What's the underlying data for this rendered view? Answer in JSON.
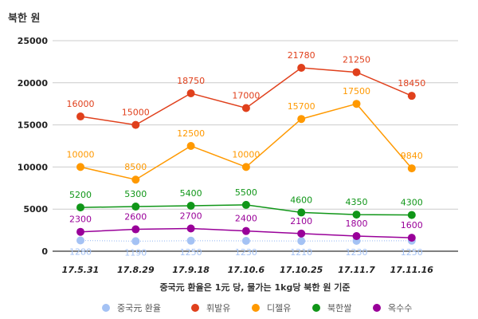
{
  "chart_data": {
    "type": "line",
    "title": "",
    "ylabel": "북한 원",
    "xlabel": "중국元 환율은 1元 당, 물가는 1kg당 북한 원 기준",
    "categories": [
      "17.5.31",
      "17.8.29",
      "17.9.18",
      "17.10.6",
      "17.10.25",
      "17.11.7",
      "17.11.16"
    ],
    "ylim": [
      0,
      25000
    ],
    "yticks": [
      0,
      5000,
      10000,
      15000,
      20000,
      25000
    ],
    "grid": true,
    "legend_position": "bottom",
    "series": [
      {
        "name": "중국元 환율",
        "color": "#a4c2f4",
        "dotted": true,
        "values": [
          1280,
          1190,
          1250,
          1230,
          1210,
          1230,
          1250
        ]
      },
      {
        "name": "휘발유",
        "color": "#e0401c",
        "values": [
          16000,
          15000,
          18750,
          17000,
          21780,
          21250,
          18450
        ]
      },
      {
        "name": "디젤유",
        "color": "#ff9900",
        "values": [
          10000,
          8500,
          12500,
          10000,
          15700,
          17500,
          9840
        ]
      },
      {
        "name": "북한쌀",
        "color": "#109618",
        "values": [
          5200,
          5300,
          5400,
          5500,
          4600,
          4350,
          4300
        ]
      },
      {
        "name": "옥수수",
        "color": "#990099",
        "values": [
          2300,
          2600,
          2700,
          2400,
          2100,
          1800,
          1600
        ]
      }
    ]
  }
}
